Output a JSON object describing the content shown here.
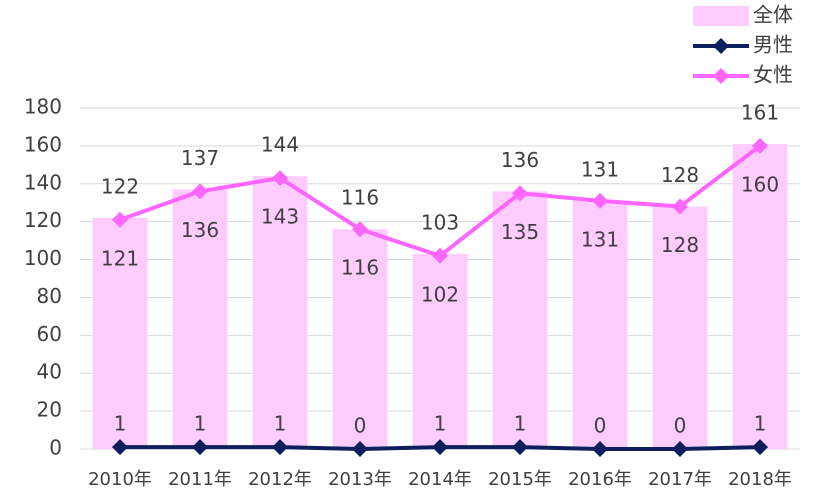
{
  "chart_data": {
    "type": "bar",
    "categories": [
      "2010年",
      "2011年",
      "2012年",
      "2013年",
      "2014年",
      "2015年",
      "2016年",
      "2017年",
      "2018年"
    ],
    "series": [
      {
        "name": "全体",
        "type": "bar",
        "color": "#ffccff",
        "values": [
          122,
          137,
          144,
          116,
          103,
          136,
          131,
          128,
          161
        ]
      },
      {
        "name": "男性",
        "type": "line",
        "color": "#0d1f5c",
        "values": [
          1,
          1,
          1,
          0,
          1,
          1,
          0,
          0,
          1
        ]
      },
      {
        "name": "女性",
        "type": "line",
        "color": "#ff66ff",
        "values": [
          121,
          136,
          143,
          116,
          102,
          135,
          131,
          128,
          160
        ]
      }
    ],
    "ylim": [
      0,
      180
    ],
    "yticks": [
      0,
      20,
      40,
      60,
      80,
      100,
      120,
      140,
      160,
      180
    ],
    "grid": true,
    "legend": "top-right"
  }
}
